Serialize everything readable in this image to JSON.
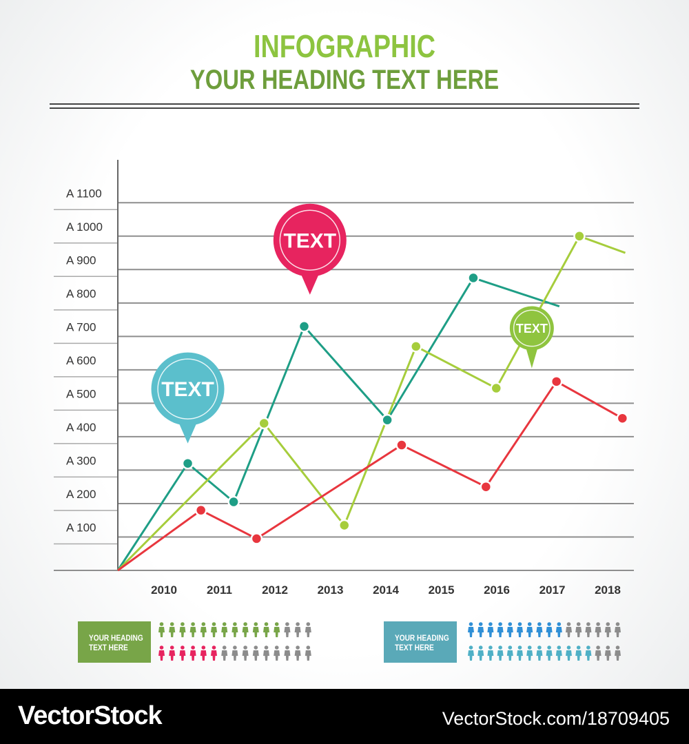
{
  "header": {
    "title": "INFOGRAPHIC",
    "subtitle": "YOUR HEADING TEXT HERE"
  },
  "chart_data": {
    "type": "line",
    "title": "",
    "xlabel": "",
    "ylabel": "",
    "y_tick_labels": [
      "A 100",
      "A 200",
      "A 300",
      "A 400",
      "A 500",
      "A 600",
      "A 700",
      "A 800",
      "A 900",
      "A 1000",
      "A 1100"
    ],
    "y_ticks": [
      100,
      200,
      300,
      400,
      500,
      600,
      700,
      800,
      900,
      1000,
      1100
    ],
    "ylim": [
      0,
      1150
    ],
    "x_tick_labels": [
      "2010",
      "2011",
      "2012",
      "2013",
      "2014",
      "2015",
      "2016",
      "2017",
      "2018"
    ],
    "xlim": [
      0,
      9
    ],
    "grid": true,
    "legend": "none",
    "series": [
      {
        "color": "#1e9e86",
        "points": [
          [
            0.0,
            0
          ],
          [
            1.22,
            320
          ],
          [
            2.02,
            205
          ],
          [
            3.25,
            730
          ],
          [
            4.7,
            450
          ],
          [
            6.2,
            875
          ],
          [
            7.7,
            790
          ]
        ]
      },
      {
        "color": "#a6cd3c",
        "points": [
          [
            0.0,
            0
          ],
          [
            2.55,
            440
          ],
          [
            3.95,
            135
          ],
          [
            5.2,
            670
          ],
          [
            6.6,
            545
          ],
          [
            8.05,
            1000
          ],
          [
            8.85,
            950
          ]
        ]
      },
      {
        "color": "#e8363e",
        "points": [
          [
            0.0,
            0
          ],
          [
            1.45,
            180
          ],
          [
            2.42,
            95
          ],
          [
            4.95,
            375
          ],
          [
            6.42,
            250
          ],
          [
            7.65,
            565
          ],
          [
            8.8,
            455
          ]
        ]
      }
    ],
    "callouts": [
      {
        "text": "TEXT",
        "color": "#5bbfcc",
        "x": 1.22,
        "y": 380
      },
      {
        "text": "TEXT",
        "color": "#e7245f",
        "x": 3.35,
        "y": 825
      },
      {
        "text": "TEXT",
        "color": "#8fc43f",
        "x": 7.22,
        "y": 605
      }
    ]
  },
  "panels": [
    {
      "label": "YOUR HEADING\nTEXT HERE",
      "color": "#78a548",
      "rows": [
        {
          "count": 15,
          "filled": 12,
          "color": "#78a548",
          "empty_color": "#8c8c8c"
        },
        {
          "count": 15,
          "filled": 6,
          "color": "#e7245f",
          "empty_color": "#8c8c8c"
        }
      ]
    },
    {
      "label": "YOUR HEADING\nTEXT HERE",
      "color": "#5aa9b8",
      "rows": [
        {
          "count": 16,
          "filled": 10,
          "color": "#2f8fd6",
          "empty_color": "#8c8c8c"
        },
        {
          "count": 16,
          "filled": 13,
          "color": "#4fb0c6",
          "empty_color": "#8c8c8c"
        }
      ]
    }
  ],
  "footer": {
    "brand": "VectorStock",
    "image_id": "VectorStock.com/18709405"
  }
}
